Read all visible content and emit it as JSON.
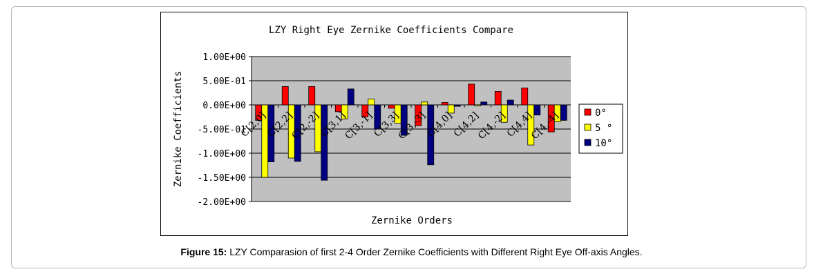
{
  "chart_data": {
    "type": "bar",
    "title": "LZY Right Eye Zernike Coefficients Compare",
    "xlabel": "Zernike Orders",
    "ylabel": "Zernike Coefficients",
    "ylim": [
      -2.0,
      1.0
    ],
    "yticks": [
      1.0,
      0.5,
      0.0,
      -0.5,
      -1.0,
      -1.5,
      -2.0
    ],
    "ytick_labels": [
      "1.00E+00",
      "5.00E-01",
      "0.00E+00",
      "-5.00E-01",
      "-1.00E+00",
      "-1.50E+00",
      "-2.00E+00"
    ],
    "grid": true,
    "legend_position": "right",
    "categories": [
      "C[2,0]",
      "C[2,2]",
      "C[2,-2]",
      "C[3,1]",
      "C[3,-1]",
      "C[3,3]",
      "C[3,-3]",
      "C[4,0]",
      "C[4,2]",
      "C[4,-2]",
      "C[4,4]",
      "C[4,-4]"
    ],
    "series": [
      {
        "name": "0°",
        "color": "#ff0000",
        "values": [
          -0.32,
          0.38,
          0.38,
          -0.14,
          -0.25,
          -0.07,
          -0.43,
          0.05,
          0.43,
          0.28,
          0.35,
          -0.56
        ]
      },
      {
        "name": "5 °",
        "color": "#ffff00",
        "values": [
          -1.5,
          -1.1,
          -0.97,
          -0.29,
          0.12,
          -0.38,
          0.06,
          -0.17,
          -0.02,
          -0.36,
          -0.83,
          -0.35
        ]
      },
      {
        "name": "10°",
        "color": "#000080",
        "values": [
          -1.18,
          -1.17,
          -1.56,
          0.33,
          -0.5,
          -0.63,
          -1.24,
          -0.03,
          0.06,
          0.1,
          -0.21,
          -0.32
        ]
      }
    ]
  },
  "caption": {
    "label": "Figure 15:",
    "text": " LZY Comparasion of first 2-4 Order Zernike Coefficients with Different Right Eye Off-axis Angles."
  }
}
